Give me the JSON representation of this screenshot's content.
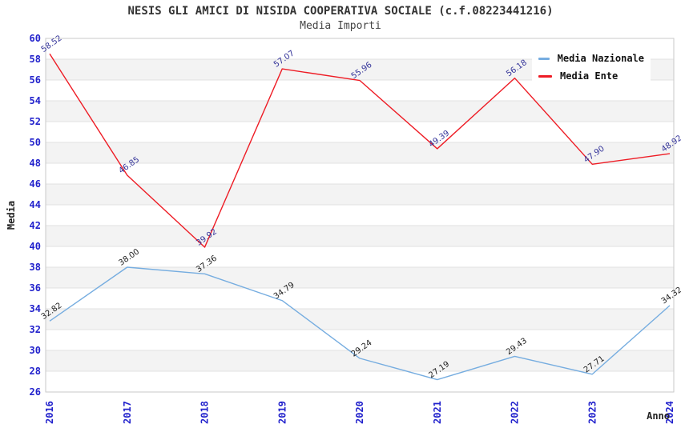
{
  "header": {
    "title": "NESIS GLI AMICI DI NISIDA COOPERATIVA SOCIALE (c.f.08223441216)",
    "subtitle": "Media Importi"
  },
  "legend": {
    "items": [
      {
        "label": "Media Nazionale",
        "color": "#76ade0"
      },
      {
        "label": "Media Ente",
        "color": "#ee1c25"
      }
    ]
  },
  "axes": {
    "y_label": "Media",
    "x_label": "Anno",
    "y_ticks": [
      26,
      28,
      30,
      32,
      34,
      36,
      38,
      40,
      42,
      44,
      46,
      48,
      50,
      52,
      54,
      56,
      58,
      60
    ],
    "x_ticks": [
      "2016",
      "2017",
      "2018",
      "2019",
      "2020",
      "2021",
      "2022",
      "2023",
      "2024"
    ],
    "tick_color": "#2222cc",
    "band_color": "#f3f3f3",
    "grid_color": "#e2e2e2",
    "border_color": "#c9c9c9"
  },
  "chart_data": {
    "type": "line",
    "title": "NESIS GLI AMICI DI NISIDA COOPERATIVA SOCIALE (c.f.08223441216)",
    "subtitle": "Media Importi",
    "xlabel": "Anno",
    "ylabel": "Media",
    "x": [
      "2016",
      "2017",
      "2018",
      "2019",
      "2020",
      "2021",
      "2022",
      "2023",
      "2024"
    ],
    "ylim": [
      26,
      60
    ],
    "ytick_step": 2,
    "grid": true,
    "legend_position": "top-right",
    "series": [
      {
        "name": "Media Nazionale",
        "color": "#76ade0",
        "label_color": "#1c1c1c",
        "values": [
          32.82,
          38.0,
          37.36,
          34.79,
          29.24,
          27.19,
          29.43,
          27.71,
          34.32
        ],
        "point_labels": [
          "32.82",
          "38.00",
          "37.36",
          "34.79",
          "29.24",
          "27.19",
          "29.43",
          "27.71",
          "34.32"
        ]
      },
      {
        "name": "Media Ente",
        "color": "#ee1c25",
        "label_color": "#333399",
        "values": [
          58.52,
          46.85,
          39.92,
          57.07,
          55.96,
          49.39,
          56.18,
          47.9,
          48.92
        ],
        "point_labels": [
          "58.52",
          "46.85",
          "39.92",
          "57.07",
          "55.96",
          "49.39",
          "56.18",
          "47.90",
          "48.92"
        ]
      }
    ]
  }
}
